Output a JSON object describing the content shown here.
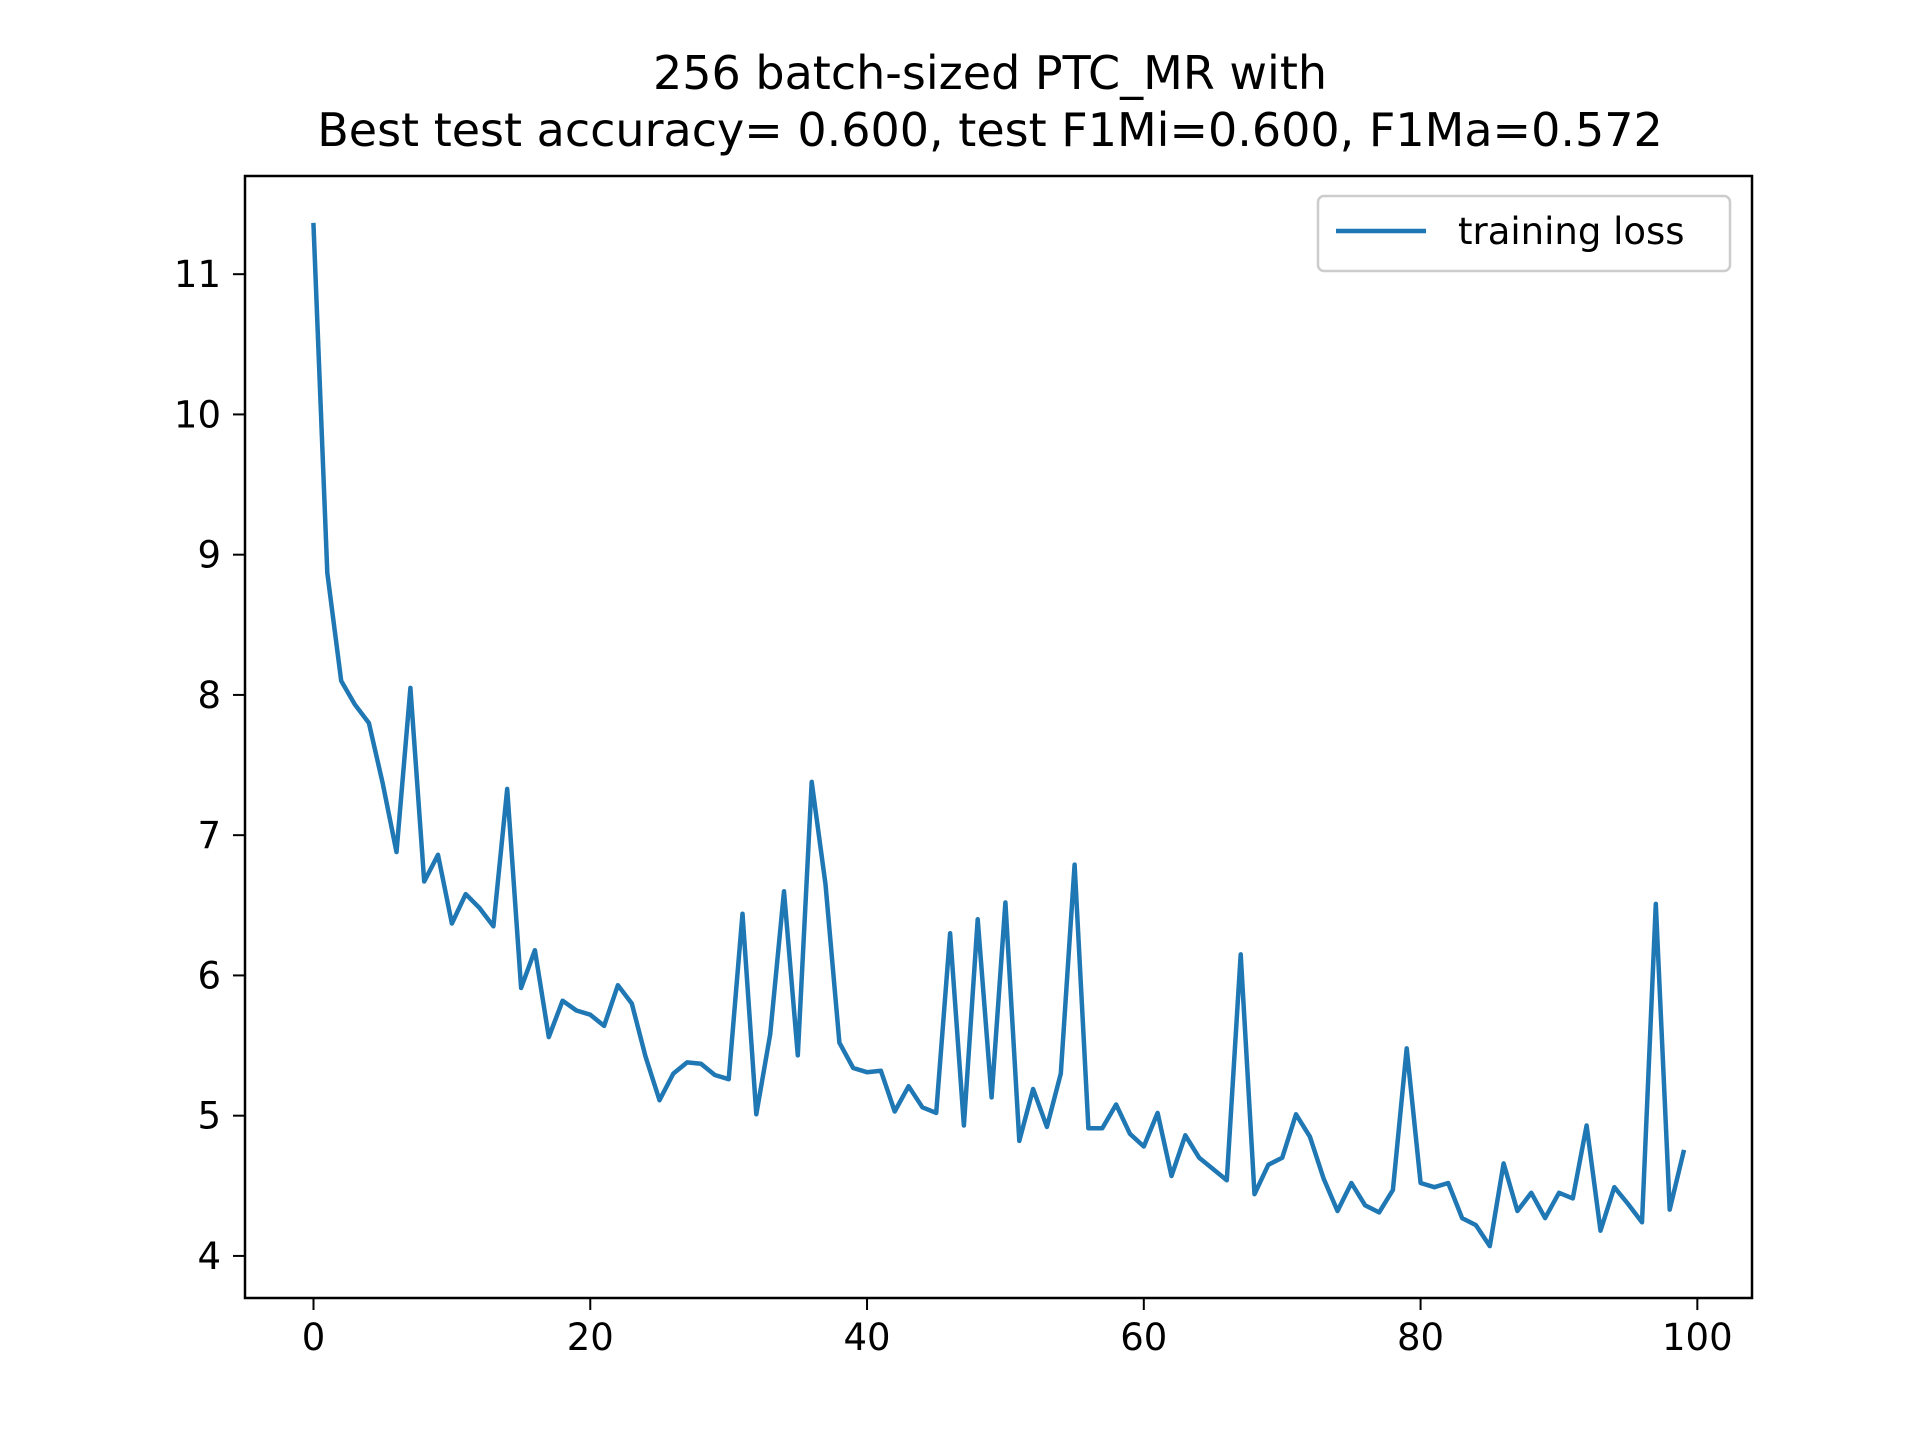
{
  "chart_data": {
    "type": "line",
    "title": [
      "256 batch-sized PTC_MR with",
      "Best test accuracy= 0.600, test F1Mi=0.600, F1Ma=0.572"
    ],
    "xlabel": "",
    "ylabel": "",
    "xlim": [
      -4.95,
      103.95
    ],
    "ylim": [
      3.7,
      11.7
    ],
    "xticks": [
      0,
      20,
      40,
      60,
      80,
      100
    ],
    "yticks": [
      4,
      5,
      6,
      7,
      8,
      9,
      10,
      11
    ],
    "grid": false,
    "legend_position": "top-right",
    "series": [
      {
        "name": "training loss",
        "color": "#1f77b4",
        "x": [
          0,
          1,
          2,
          3,
          4,
          5,
          6,
          7,
          8,
          9,
          10,
          11,
          12,
          13,
          14,
          15,
          16,
          17,
          18,
          19,
          20,
          21,
          22,
          23,
          24,
          25,
          26,
          27,
          28,
          29,
          30,
          31,
          32,
          33,
          34,
          35,
          36,
          37,
          38,
          39,
          40,
          41,
          42,
          43,
          44,
          45,
          46,
          47,
          48,
          49,
          50,
          51,
          52,
          53,
          54,
          55,
          56,
          57,
          58,
          59,
          60,
          61,
          62,
          63,
          64,
          65,
          66,
          67,
          68,
          69,
          70,
          71,
          72,
          73,
          74,
          75,
          76,
          77,
          78,
          79,
          80,
          81,
          82,
          83,
          84,
          85,
          86,
          87,
          88,
          89,
          90,
          91,
          92,
          93,
          94,
          95,
          96,
          97,
          98,
          99
        ],
        "values": [
          11.35,
          8.87,
          8.1,
          7.93,
          7.8,
          7.37,
          6.88,
          8.05,
          6.67,
          6.86,
          6.37,
          6.58,
          6.48,
          6.35,
          7.33,
          5.91,
          6.18,
          5.56,
          5.82,
          5.75,
          5.72,
          5.64,
          5.93,
          5.8,
          5.42,
          5.11,
          5.3,
          5.38,
          5.37,
          5.29,
          5.26,
          6.44,
          5.01,
          5.58,
          6.6,
          5.43,
          7.38,
          6.65,
          5.52,
          5.34,
          5.31,
          5.32,
          5.03,
          5.21,
          5.06,
          5.02,
          6.3,
          4.93,
          6.4,
          5.13,
          6.52,
          4.82,
          5.19,
          4.92,
          5.3,
          6.79,
          4.91,
          4.91,
          5.08,
          4.87,
          4.78,
          5.02,
          4.57,
          4.86,
          4.7,
          4.62,
          4.54,
          6.15,
          4.44,
          4.65,
          4.7,
          5.01,
          4.85,
          4.55,
          4.32,
          4.52,
          4.36,
          4.31,
          4.47,
          5.48,
          4.52,
          4.49,
          4.52,
          4.27,
          4.22,
          4.07,
          4.66,
          4.32,
          4.45,
          4.27,
          4.45,
          4.41,
          4.93,
          4.18,
          4.49,
          4.37,
          4.24,
          6.51,
          4.33,
          4.74
        ]
      }
    ]
  }
}
